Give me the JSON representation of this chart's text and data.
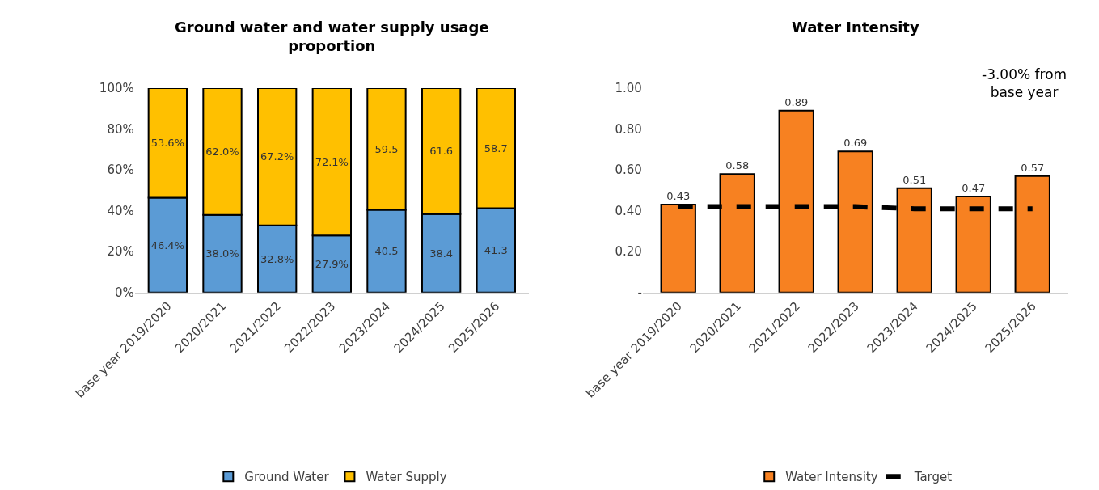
{
  "chart_data": [
    {
      "type": "bar",
      "title": "Ground water and water supply usage proportion",
      "stacked": true,
      "legend": "bottom",
      "categories": [
        "base year 2019/2020",
        "2020/2021",
        "2021/2022",
        "2022/2023",
        "2023/2024",
        "2024/2025",
        "2025/2026"
      ],
      "ylim": [
        0,
        100
      ],
      "yticks": [
        {
          "value": 0,
          "label": "0%"
        },
        {
          "value": 20,
          "label": "20%"
        },
        {
          "value": 40,
          "label": "40%"
        },
        {
          "value": 60,
          "label": "60%"
        },
        {
          "value": 80,
          "label": "80%"
        },
        {
          "value": 100,
          "label": "100%"
        }
      ],
      "series": [
        {
          "name": "Ground Water",
          "color": "#5b9bd5",
          "values": [
            46.4,
            38.0,
            32.8,
            27.9,
            40.5,
            38.4,
            41.3
          ],
          "value_labels": [
            "46.4%",
            "38.0%",
            "32.8%",
            "27.9%",
            "40.5",
            "38.4",
            "41.3"
          ]
        },
        {
          "name": "Water Supply",
          "color": "#ffc000",
          "values": [
            53.6,
            62.0,
            67.2,
            72.1,
            59.5,
            61.6,
            58.7
          ],
          "value_labels": [
            "53.6%",
            "62.0%",
            "67.2%",
            "72.1%",
            "59.5",
            "61.6",
            "58.7"
          ]
        }
      ]
    },
    {
      "type": "bar",
      "title": "Water Intensity",
      "legend": "bottom",
      "annotations": [
        "-3.00% from base year"
      ],
      "categories": [
        "base year 2019/2020",
        "2020/2021",
        "2021/2022",
        "2022/2023",
        "2023/2024",
        "2024/2025",
        "2025/2026"
      ],
      "ylim": [
        0,
        1.0
      ],
      "yticks": [
        {
          "value": 0,
          "label": "-"
        },
        {
          "value": 0.2,
          "label": "0.20"
        },
        {
          "value": 0.4,
          "label": "0.40"
        },
        {
          "value": 0.6,
          "label": "0.60"
        },
        {
          "value": 0.8,
          "label": "0.80"
        },
        {
          "value": 1.0,
          "label": "1.00"
        }
      ],
      "series": [
        {
          "name": "Water Intensity",
          "color": "#f78121",
          "values": [
            0.43,
            0.58,
            0.89,
            0.69,
            0.51,
            0.47,
            0.57
          ],
          "data_labels": true
        },
        {
          "name": "Target",
          "type": "line",
          "line_style": "dashed",
          "marker": "none",
          "color": "#000000",
          "values": [
            0.42,
            0.42,
            0.42,
            0.42,
            0.41,
            0.41,
            0.41
          ]
        }
      ]
    }
  ]
}
